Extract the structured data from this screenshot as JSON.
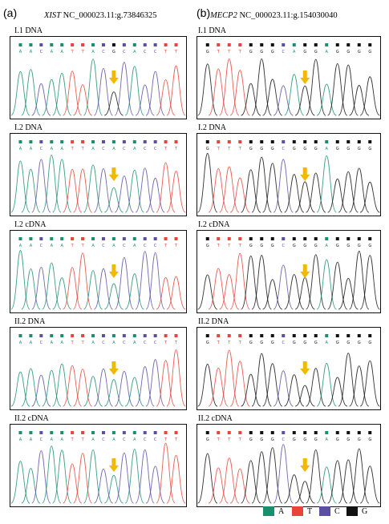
{
  "colors": {
    "A": "#1a8f6e",
    "T": "#e8443a",
    "C": "#5a4fa3",
    "G": "#111111",
    "arrow": "#f5b800"
  },
  "part_a": {
    "letter": "(a)",
    "gene": "XIST",
    "locus": "NC_000023.11:g.73846325",
    "sequence": [
      "A",
      "A",
      "C",
      "A",
      "A",
      "T",
      "T",
      "A",
      "C",
      "G",
      "C",
      "A",
      "C",
      "C",
      "T",
      "T"
    ],
    "panels": [
      {
        "label": "I.1  DNA",
        "seq_text": "A A C A A T T A C G C A C C T T"
      },
      {
        "label": "I.2  DNA",
        "seq_text": "A A C A A T T A C A C A C C T T"
      },
      {
        "label": "I.2  cDNA",
        "seq_text": "A A C A A T T A C A C A C C T T"
      },
      {
        "label": "II.2  DNA",
        "seq_text": "A A C A A T T A C A C A C C T T"
      },
      {
        "label": "II.2  cDNA",
        "seq_text": "A A C A A T T A C A C A C C T T"
      }
    ]
  },
  "part_b": {
    "letter": "(b)",
    "gene": "MECP2",
    "locus": "NC_000023.11:g.154030040",
    "panels": [
      {
        "label": "I.1  DNA",
        "seq_text": "G T T T G G G C A G G A G G G G"
      },
      {
        "label": "I.2  DNA",
        "seq_text": "G T T T G G G C G G G A G G G G"
      },
      {
        "label": "I.2 cDNA",
        "seq_text": "G T T T G G G C G G G A G G G G"
      },
      {
        "label": "II.2  DNA",
        "seq_text": "G T T T G G G C G G G A G G G G"
      },
      {
        "label": "II.2  cDNA",
        "seq_text": "G T T T G G G C G G G A G G G G"
      }
    ]
  },
  "legend": [
    {
      "base": "A",
      "label": "A"
    },
    {
      "base": "T",
      "label": "T"
    },
    {
      "base": "C",
      "label": "C"
    },
    {
      "base": "G",
      "label": "G"
    }
  ]
}
